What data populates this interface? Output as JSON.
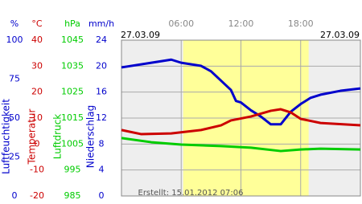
{
  "chart_data": {
    "type": "line",
    "dates": [
      "27.03.09",
      "27.03.09"
    ],
    "created": "Erstellt: 15.01.2012 07:06",
    "xlim": [
      0,
      24
    ],
    "xticks": [
      {
        "value": 6,
        "label": "06:00"
      },
      {
        "value": 12,
        "label": "12:00"
      },
      {
        "value": 18,
        "label": "18:00"
      }
    ],
    "daylight": [
      6.2,
      18.8
    ],
    "grid": true,
    "axes": [
      {
        "unit": "%",
        "label": "Luftfeuchtigkeit",
        "color": "#0000cc",
        "ylim": [
          0,
          100
        ],
        "yticks": [
          0,
          25,
          50,
          75,
          100
        ]
      },
      {
        "unit": "°C",
        "label": "Temperatur",
        "color": "#cc0000",
        "ylim": [
          -20,
          40
        ],
        "yticks": [
          -20,
          -10,
          0,
          10,
          20,
          30,
          40
        ]
      },
      {
        "unit": "hPa",
        "label": "Luftdruck",
        "color": "#00cc00",
        "ylim": [
          985,
          1045
        ],
        "yticks": [
          985,
          995,
          1005,
          1015,
          1025,
          1035,
          1045
        ]
      },
      {
        "unit": "mm/h",
        "label": "Niederschlag",
        "color": "#0000cc",
        "ylim": [
          0,
          24
        ],
        "yticks": [
          0,
          4,
          8,
          12,
          16,
          20,
          24
        ]
      }
    ],
    "series": [
      {
        "axis": 0,
        "color": "#0000cc",
        "x": [
          0,
          3,
          5,
          6,
          8,
          9,
          10,
          11,
          11.5,
          12,
          13,
          14,
          15,
          16,
          17,
          18,
          19,
          20,
          22,
          24
        ],
        "values": [
          82.5,
          85.5,
          87.5,
          85.5,
          83.5,
          80,
          74,
          68,
          61,
          60,
          55,
          51,
          46,
          46,
          54,
          59,
          63,
          65,
          67.5,
          69
        ]
      },
      {
        "axis": 1,
        "color": "#cc0000",
        "x": [
          0,
          2,
          5,
          8,
          10,
          11,
          13,
          15,
          16,
          17,
          18,
          20,
          24
        ],
        "values": [
          5.4,
          3.8,
          4.1,
          5.4,
          7.2,
          9.1,
          10.6,
          12.8,
          13.4,
          12.2,
          9.7,
          8.1,
          7.2
        ]
      },
      {
        "axis": 2,
        "color": "#00cc00",
        "x": [
          0,
          3,
          6,
          10,
          13,
          16,
          18,
          20,
          24
        ],
        "values": [
          1007.3,
          1005.7,
          1004.8,
          1004.2,
          1003.6,
          1002.3,
          1002.9,
          1003.2,
          1002.9
        ]
      }
    ]
  }
}
